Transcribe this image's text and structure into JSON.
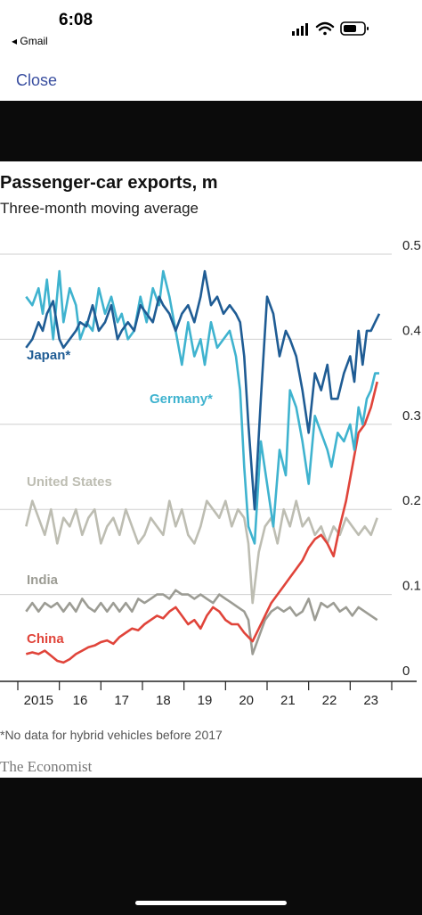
{
  "status_bar": {
    "time": "6:08",
    "back_app": "◂ Gmail"
  },
  "nav": {
    "close_label": "Close"
  },
  "source": "The Economist",
  "footnote": "*No data for hybrid vehicles before 2017",
  "colors": {
    "japan": "#1f5c94",
    "germany": "#3fb3cf",
    "united_states": "#bdbdb2",
    "india": "#9c9c94",
    "china": "#e0443a",
    "grid": "#cfcfcf",
    "link": "#3a4fa0"
  },
  "chart_data": {
    "type": "line",
    "title": "Passenger-car exports, m",
    "subtitle": "Three-month moving average",
    "ylim": [
      0,
      0.5
    ],
    "y_ticks": [
      "0",
      "0.1",
      "0.2",
      "0.3",
      "0.4",
      "0.5"
    ],
    "y_tick_values": [
      0,
      0.1,
      0.2,
      0.3,
      0.4,
      0.5
    ],
    "x_ticks": [
      "2015",
      "16",
      "17",
      "18",
      "19",
      "20",
      "21",
      "22",
      "23"
    ],
    "x_tick_values": [
      2015,
      2016,
      2017,
      2018,
      2019,
      2020,
      2021,
      2022,
      2023
    ],
    "xlim": [
      2014.5,
      2023.35
    ],
    "grid": true,
    "series": [
      {
        "name": "Japan*",
        "color_key": "japan",
        "x": [
          2014.7,
          2014.85,
          2015.0,
          2015.1,
          2015.2,
          2015.35,
          2015.5,
          2015.6,
          2015.75,
          2015.9,
          2016.0,
          2016.15,
          2016.3,
          2016.45,
          2016.6,
          2016.75,
          2016.9,
          2017.0,
          2017.15,
          2017.3,
          2017.45,
          2017.6,
          2017.75,
          2017.9,
          2018.0,
          2018.15,
          2018.3,
          2018.45,
          2018.6,
          2018.75,
          2018.9,
          2019.0,
          2019.15,
          2019.3,
          2019.45,
          2019.6,
          2019.75,
          2019.85,
          2019.95,
          2020.05,
          2020.2,
          2020.35,
          2020.5,
          2020.65,
          2020.8,
          2020.95,
          2021.05,
          2021.2,
          2021.35,
          2021.5,
          2021.65,
          2021.8,
          2021.95,
          2022.05,
          2022.2,
          2022.35,
          2022.5,
          2022.6,
          2022.7,
          2022.8,
          2022.9,
          2023.0,
          2023.1,
          2023.2
        ],
        "y": [
          0.39,
          0.4,
          0.42,
          0.41,
          0.43,
          0.445,
          0.4,
          0.39,
          0.4,
          0.41,
          0.42,
          0.415,
          0.44,
          0.41,
          0.42,
          0.44,
          0.4,
          0.41,
          0.42,
          0.41,
          0.44,
          0.43,
          0.42,
          0.45,
          0.44,
          0.43,
          0.41,
          0.43,
          0.44,
          0.42,
          0.45,
          0.48,
          0.44,
          0.45,
          0.43,
          0.44,
          0.43,
          0.42,
          0.38,
          0.3,
          0.2,
          0.33,
          0.45,
          0.43,
          0.38,
          0.41,
          0.4,
          0.38,
          0.34,
          0.29,
          0.36,
          0.34,
          0.37,
          0.33,
          0.33,
          0.36,
          0.38,
          0.35,
          0.41,
          0.37,
          0.41,
          0.41,
          0.42,
          0.43
        ]
      },
      {
        "name": "Germany*",
        "color_key": "germany",
        "x": [
          2014.7,
          2014.85,
          2015.0,
          2015.1,
          2015.2,
          2015.35,
          2015.5,
          2015.6,
          2015.75,
          2015.9,
          2016.0,
          2016.15,
          2016.3,
          2016.45,
          2016.6,
          2016.75,
          2016.9,
          2017.0,
          2017.15,
          2017.3,
          2017.45,
          2017.6,
          2017.75,
          2017.9,
          2018.0,
          2018.15,
          2018.3,
          2018.45,
          2018.6,
          2018.75,
          2018.9,
          2019.0,
          2019.15,
          2019.3,
          2019.45,
          2019.6,
          2019.75,
          2019.85,
          2019.95,
          2020.05,
          2020.2,
          2020.35,
          2020.5,
          2020.65,
          2020.8,
          2020.95,
          2021.05,
          2021.2,
          2021.35,
          2021.5,
          2021.65,
          2021.8,
          2021.95,
          2022.05,
          2022.2,
          2022.35,
          2022.5,
          2022.6,
          2022.7,
          2022.8,
          2022.9,
          2023.0,
          2023.1,
          2023.2
        ],
        "y": [
          0.45,
          0.44,
          0.46,
          0.43,
          0.47,
          0.4,
          0.48,
          0.42,
          0.46,
          0.44,
          0.4,
          0.42,
          0.41,
          0.46,
          0.43,
          0.45,
          0.42,
          0.43,
          0.4,
          0.41,
          0.45,
          0.42,
          0.46,
          0.44,
          0.48,
          0.45,
          0.41,
          0.37,
          0.42,
          0.38,
          0.4,
          0.37,
          0.42,
          0.39,
          0.4,
          0.41,
          0.38,
          0.34,
          0.25,
          0.18,
          0.16,
          0.28,
          0.23,
          0.18,
          0.27,
          0.24,
          0.34,
          0.32,
          0.28,
          0.23,
          0.31,
          0.29,
          0.27,
          0.25,
          0.29,
          0.28,
          0.3,
          0.27,
          0.32,
          0.3,
          0.33,
          0.34,
          0.36,
          0.36
        ]
      },
      {
        "name": "United States",
        "color_key": "united_states",
        "x": [
          2014.7,
          2014.85,
          2015.0,
          2015.15,
          2015.3,
          2015.45,
          2015.6,
          2015.75,
          2015.9,
          2016.05,
          2016.2,
          2016.35,
          2016.5,
          2016.65,
          2016.8,
          2016.95,
          2017.1,
          2017.25,
          2017.4,
          2017.55,
          2017.7,
          2017.85,
          2018.0,
          2018.15,
          2018.3,
          2018.45,
          2018.6,
          2018.75,
          2018.9,
          2019.05,
          2019.2,
          2019.35,
          2019.5,
          2019.65,
          2019.8,
          2019.95,
          2020.05,
          2020.15,
          2020.3,
          2020.45,
          2020.6,
          2020.75,
          2020.9,
          2021.05,
          2021.2,
          2021.35,
          2021.5,
          2021.65,
          2021.8,
          2021.95,
          2022.1,
          2022.25,
          2022.4,
          2022.55,
          2022.7,
          2022.85,
          2023.0,
          2023.15
        ],
        "y": [
          0.18,
          0.21,
          0.19,
          0.17,
          0.2,
          0.16,
          0.19,
          0.18,
          0.2,
          0.17,
          0.19,
          0.2,
          0.16,
          0.18,
          0.19,
          0.17,
          0.2,
          0.18,
          0.16,
          0.17,
          0.19,
          0.18,
          0.17,
          0.21,
          0.18,
          0.2,
          0.17,
          0.16,
          0.18,
          0.21,
          0.2,
          0.19,
          0.21,
          0.18,
          0.2,
          0.19,
          0.16,
          0.09,
          0.15,
          0.18,
          0.19,
          0.16,
          0.2,
          0.18,
          0.21,
          0.18,
          0.19,
          0.17,
          0.18,
          0.16,
          0.18,
          0.17,
          0.19,
          0.18,
          0.17,
          0.18,
          0.17,
          0.19
        ]
      },
      {
        "name": "India",
        "color_key": "india",
        "x": [
          2014.7,
          2014.85,
          2015.0,
          2015.15,
          2015.3,
          2015.45,
          2015.6,
          2015.75,
          2015.9,
          2016.05,
          2016.2,
          2016.35,
          2016.5,
          2016.65,
          2016.8,
          2016.95,
          2017.1,
          2017.25,
          2017.4,
          2017.55,
          2017.7,
          2017.85,
          2018.0,
          2018.15,
          2018.3,
          2018.45,
          2018.6,
          2018.75,
          2018.9,
          2019.05,
          2019.2,
          2019.35,
          2019.5,
          2019.65,
          2019.8,
          2019.95,
          2020.05,
          2020.15,
          2020.3,
          2020.45,
          2020.6,
          2020.75,
          2020.9,
          2021.05,
          2021.2,
          2021.35,
          2021.5,
          2021.65,
          2021.8,
          2021.95,
          2022.1,
          2022.25,
          2022.4,
          2022.55,
          2022.7,
          2022.85,
          2023.0,
          2023.15
        ],
        "y": [
          0.08,
          0.09,
          0.08,
          0.09,
          0.085,
          0.09,
          0.08,
          0.09,
          0.08,
          0.095,
          0.085,
          0.08,
          0.09,
          0.08,
          0.09,
          0.08,
          0.09,
          0.08,
          0.095,
          0.09,
          0.095,
          0.1,
          0.1,
          0.095,
          0.105,
          0.1,
          0.1,
          0.095,
          0.1,
          0.095,
          0.09,
          0.1,
          0.095,
          0.09,
          0.085,
          0.08,
          0.07,
          0.03,
          0.05,
          0.07,
          0.08,
          0.085,
          0.08,
          0.085,
          0.075,
          0.08,
          0.095,
          0.07,
          0.09,
          0.085,
          0.09,
          0.08,
          0.085,
          0.075,
          0.085,
          0.08,
          0.075,
          0.07
        ]
      },
      {
        "name": "China",
        "color_key": "china",
        "x": [
          2014.7,
          2014.85,
          2015.0,
          2015.15,
          2015.3,
          2015.45,
          2015.6,
          2015.75,
          2015.9,
          2016.05,
          2016.2,
          2016.35,
          2016.5,
          2016.65,
          2016.8,
          2016.95,
          2017.1,
          2017.25,
          2017.4,
          2017.55,
          2017.7,
          2017.85,
          2018.0,
          2018.15,
          2018.3,
          2018.45,
          2018.6,
          2018.75,
          2018.9,
          2019.05,
          2019.2,
          2019.35,
          2019.5,
          2019.65,
          2019.8,
          2019.95,
          2020.05,
          2020.15,
          2020.3,
          2020.45,
          2020.6,
          2020.75,
          2020.9,
          2021.05,
          2021.2,
          2021.35,
          2021.5,
          2021.65,
          2021.8,
          2021.95,
          2022.1,
          2022.25,
          2022.4,
          2022.55,
          2022.7,
          2022.85,
          2023.0,
          2023.15
        ],
        "y": [
          0.03,
          0.032,
          0.03,
          0.034,
          0.028,
          0.022,
          0.02,
          0.024,
          0.03,
          0.034,
          0.038,
          0.04,
          0.044,
          0.046,
          0.042,
          0.05,
          0.055,
          0.06,
          0.058,
          0.065,
          0.07,
          0.075,
          0.072,
          0.08,
          0.085,
          0.075,
          0.065,
          0.07,
          0.06,
          0.075,
          0.085,
          0.08,
          0.07,
          0.065,
          0.065,
          0.055,
          0.05,
          0.045,
          0.06,
          0.075,
          0.09,
          0.1,
          0.11,
          0.12,
          0.13,
          0.14,
          0.155,
          0.165,
          0.17,
          0.16,
          0.145,
          0.18,
          0.21,
          0.25,
          0.29,
          0.3,
          0.32,
          0.35
        ]
      }
    ]
  }
}
